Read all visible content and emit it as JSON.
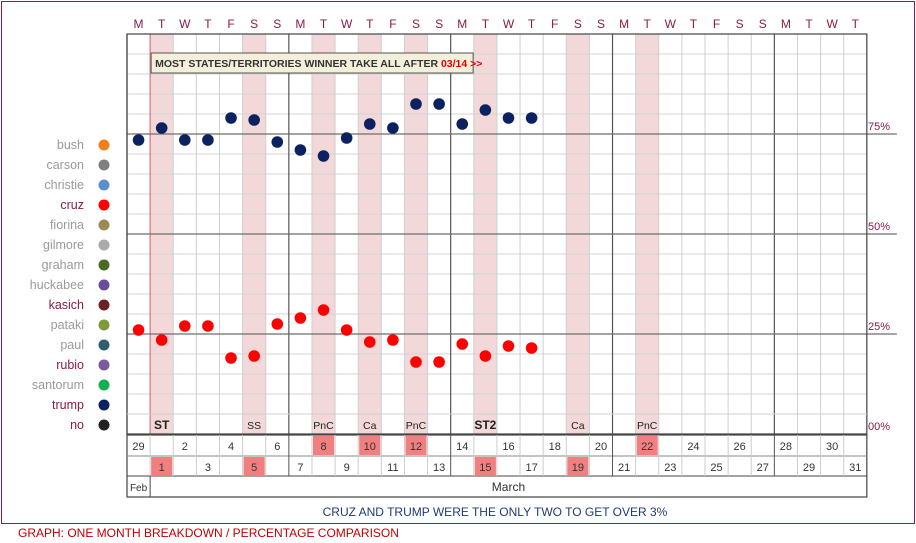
{
  "chart_data": {
    "type": "scatter",
    "title": "",
    "subtitle": "CRUZ AND TRUMP WERE THE ONLY TWO TO GET OVER 3%",
    "footer": "GRAPH: ONE MONTH BREAKDOWN / PERCENTAGE COMPARISON",
    "banner": {
      "text": "MOST STATES/TERRITORIES WINNER TAKE ALL AFTER",
      "highlight": "03/14 >>"
    },
    "weekday_labels": [
      "M",
      "T",
      "W",
      "T",
      "F",
      "S",
      "S",
      "M",
      "T",
      "W",
      "T",
      "F",
      "S",
      "S",
      "M",
      "T",
      "W",
      "T",
      "F",
      "S",
      "S",
      "M",
      "T",
      "W",
      "T",
      "F",
      "S",
      "S",
      "M",
      "T",
      "W",
      "T"
    ],
    "days": [
      "29",
      "1",
      "2",
      "3",
      "4",
      "5",
      "6",
      "7",
      "8",
      "9",
      "10",
      "11",
      "12",
      "13",
      "14",
      "15",
      "16",
      "17",
      "18",
      "19",
      "20",
      "21",
      "22",
      "23",
      "24",
      "25",
      "26",
      "27",
      "28",
      "29",
      "30",
      "31"
    ],
    "highlight_days": [
      1,
      5,
      8,
      10,
      12,
      15,
      19,
      22
    ],
    "shaded_columns": [
      1,
      5,
      8,
      10,
      12,
      15,
      19,
      22
    ],
    "event_labels": [
      {
        "col": 1,
        "label": "ST",
        "bold": true
      },
      {
        "col": 5,
        "label": "SS",
        "bold": false
      },
      {
        "col": 8,
        "label": "PnC",
        "bold": false
      },
      {
        "col": 10,
        "label": "Ca",
        "bold": false
      },
      {
        "col": 12,
        "label": "PnC",
        "bold": false
      },
      {
        "col": 15,
        "label": "ST2",
        "bold": true
      },
      {
        "col": 19,
        "label": "Ca",
        "bold": false
      },
      {
        "col": 22,
        "label": "PnC",
        "bold": false
      }
    ],
    "months": [
      {
        "label": "Feb",
        "start": 0,
        "end": 1
      },
      {
        "label": "March",
        "start": 1,
        "end": 32
      }
    ],
    "ylim": [
      0,
      100
    ],
    "yticks": [
      {
        "value": 75,
        "label": "75%"
      },
      {
        "value": 50,
        "label": "50%"
      },
      {
        "value": 25,
        "label": "25%"
      },
      {
        "value": 0,
        "label": "00%"
      }
    ],
    "legend": [
      {
        "name": "bush",
        "color": "#f07f1e",
        "dim": true
      },
      {
        "name": "carson",
        "color": "#808080",
        "dim": true
      },
      {
        "name": "christie",
        "color": "#5b8fd4",
        "dim": true
      },
      {
        "name": "cruz",
        "color": "#ff0000",
        "dim": false
      },
      {
        "name": "fiorina",
        "color": "#9a8a52",
        "dim": true
      },
      {
        "name": "gilmore",
        "color": "#ababab",
        "dim": true
      },
      {
        "name": "graham",
        "color": "#4a6a22",
        "dim": true
      },
      {
        "name": "huckabee",
        "color": "#6a4c9c",
        "dim": true
      },
      {
        "name": "kasich",
        "color": "#6b2222",
        "dim": false
      },
      {
        "name": "pataki",
        "color": "#7f9a3a",
        "dim": true
      },
      {
        "name": "paul",
        "color": "#2f5f6f",
        "dim": true
      },
      {
        "name": "rubio",
        "color": "#7a5a9c",
        "dim": false
      },
      {
        "name": "santorum",
        "color": "#10b050",
        "dim": true
      },
      {
        "name": "trump",
        "color": "#0c2160",
        "dim": false
      },
      {
        "name": "no",
        "color": "#222222",
        "dim": false
      }
    ],
    "series": [
      {
        "name": "trump",
        "color": "#0c2160",
        "points": [
          [
            0,
            73.5
          ],
          [
            1,
            76.5
          ],
          [
            2,
            73.5
          ],
          [
            3,
            73.5
          ],
          [
            4,
            79
          ],
          [
            5,
            78.5
          ],
          [
            6,
            73
          ],
          [
            7,
            71
          ],
          [
            8,
            69.5
          ],
          [
            9,
            74
          ],
          [
            10,
            77.5
          ],
          [
            11,
            76.5
          ],
          [
            12,
            82.5
          ],
          [
            13,
            82.5
          ],
          [
            14,
            77.5
          ],
          [
            15,
            81
          ],
          [
            16,
            79
          ],
          [
            17,
            79
          ]
        ]
      },
      {
        "name": "cruz",
        "color": "#ff0000",
        "points": [
          [
            0,
            26
          ],
          [
            1,
            23.5
          ],
          [
            2,
            27
          ],
          [
            3,
            27
          ],
          [
            4,
            19
          ],
          [
            5,
            19.5
          ],
          [
            6,
            27.5
          ],
          [
            7,
            29
          ],
          [
            8,
            31
          ],
          [
            9,
            26
          ],
          [
            10,
            23
          ],
          [
            11,
            23.5
          ],
          [
            12,
            18
          ],
          [
            13,
            18
          ],
          [
            14,
            22.5
          ],
          [
            15,
            19.5
          ],
          [
            16,
            22
          ],
          [
            17,
            21.5
          ]
        ]
      }
    ]
  }
}
